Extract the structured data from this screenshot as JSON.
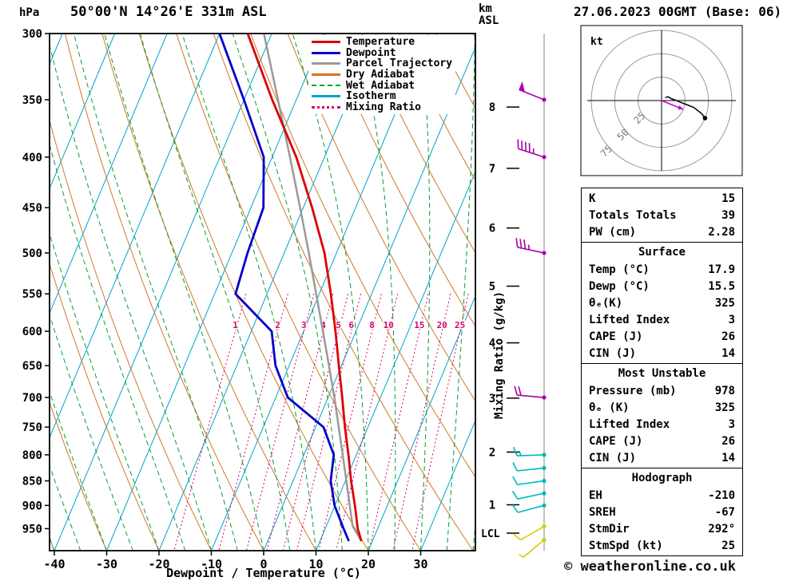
{
  "header": {
    "left_unit": "hPa",
    "station": "50°00'N 14°26'E 331m ASL",
    "datetime": "27.06.2023 00GMT (Base: 06)",
    "alt_unit_line1": "km",
    "alt_unit_line2": "ASL"
  },
  "axes": {
    "pressure_ticks": [
      300,
      350,
      400,
      450,
      500,
      550,
      600,
      650,
      700,
      750,
      800,
      850,
      900,
      950
    ],
    "temp_ticks": [
      -40,
      -30,
      -20,
      -10,
      0,
      10,
      20,
      30
    ],
    "x_label": "Dewpoint / Temperature (°C)",
    "km_ticks": [
      8,
      7,
      6,
      5,
      4,
      3,
      2,
      1
    ],
    "lcl_label": "LCL",
    "mixing_ratio_axis_label": "Mixing Ratio (g/kg)"
  },
  "legend": {
    "items": [
      {
        "label": "Temperature",
        "color": "#dd0000",
        "dash": "solid"
      },
      {
        "label": "Dewpoint",
        "color": "#0000cc",
        "dash": "solid"
      },
      {
        "label": "Parcel Trajectory",
        "color": "#9a9a9a",
        "dash": "solid"
      },
      {
        "label": "Dry Adiabat",
        "color": "#d07828",
        "dash": "solid"
      },
      {
        "label": "Wet Adiabat",
        "color": "#00a030",
        "dash": "dashed"
      },
      {
        "label": "Isotherm",
        "color": "#00a3cc",
        "dash": "solid"
      },
      {
        "label": "Mixing Ratio",
        "color": "#d6006e",
        "dash": "dotted"
      }
    ]
  },
  "chart_data": {
    "type": "skewt-log-p",
    "pressure_axis_hpa": [
      300,
      1000
    ],
    "surface_temp_axis_c": [
      -40,
      40
    ],
    "isotherm_step_c": 10,
    "dry_adiabat_step_c": 10,
    "wet_adiabat_step_c": 5,
    "mixing_ratio_lines_gkg": [
      1,
      2,
      3,
      4,
      5,
      6,
      8,
      10,
      15,
      20,
      25
    ],
    "colors": {
      "temperature": "#dd0000",
      "dewpoint": "#0000cc",
      "parcel": "#9a9a9a",
      "dry_adiabat": "#d07828",
      "wet_adiabat": "#00a030",
      "isotherm": "#00a3cc",
      "mixing_ratio": "#d6006e"
    },
    "sounding": {
      "pressure_hpa": [
        978,
        950,
        900,
        850,
        800,
        750,
        700,
        650,
        600,
        550,
        500,
        450,
        400,
        350,
        300
      ],
      "temperature_c": [
        17.9,
        16.2,
        13.8,
        11.1,
        8.5,
        5.6,
        2.7,
        -0.5,
        -3.9,
        -7.8,
        -12.3,
        -18.3,
        -25.4,
        -34.6,
        -44.6
      ],
      "dewpoint_c": [
        15.5,
        13.5,
        9.9,
        7.2,
        5.7,
        1.5,
        -7.7,
        -12.6,
        -16.1,
        -26.0,
        -27.0,
        -27.6,
        -31.6,
        -40.0,
        -50.0
      ]
    },
    "parcel": {
      "pressure_hpa": [
        978,
        944,
        900,
        850,
        800,
        750,
        700,
        650,
        600,
        550,
        500,
        450,
        400,
        350,
        300
      ],
      "temperature_c": [
        17.9,
        15.0,
        12.8,
        10.2,
        7.4,
        4.4,
        1.2,
        -2.4,
        -6.3,
        -10.6,
        -15.3,
        -20.6,
        -26.6,
        -33.5,
        -41.5
      ]
    },
    "lcl_pressure_hpa": 960,
    "winds": [
      {
        "p": 350,
        "dir": 292,
        "spd": 50,
        "color": "#a800a8"
      },
      {
        "p": 400,
        "dir": 288,
        "spd": 45,
        "color": "#a800a8"
      },
      {
        "p": 500,
        "dir": 282,
        "spd": 35,
        "color": "#a800a8"
      },
      {
        "p": 700,
        "dir": 275,
        "spd": 20,
        "color": "#a800a8"
      },
      {
        "p": 800,
        "dir": 268,
        "spd": 15,
        "color": "#00b8b8"
      },
      {
        "p": 825,
        "dir": 264,
        "spd": 12,
        "color": "#00b8b8"
      },
      {
        "p": 850,
        "dir": 262,
        "spd": 12,
        "color": "#00b8b8"
      },
      {
        "p": 875,
        "dir": 258,
        "spd": 10,
        "color": "#00b8b8"
      },
      {
        "p": 900,
        "dir": 255,
        "spd": 10,
        "color": "#00b8b8"
      },
      {
        "p": 945,
        "dir": 240,
        "spd": 8,
        "color": "#d8cc00"
      },
      {
        "p": 975,
        "dir": 230,
        "spd": 5,
        "color": "#d8cc00"
      }
    ]
  },
  "hodograph": {
    "unit": "kt",
    "rings": [
      25,
      50,
      75
    ],
    "storm_dir_deg": 292,
    "storm_speed_kt": 25
  },
  "table": {
    "sections": [
      {
        "header": null,
        "rows": [
          [
            "K",
            "15"
          ],
          [
            "Totals Totals",
            "39"
          ],
          [
            "PW (cm)",
            "2.28"
          ]
        ]
      },
      {
        "header": "Surface",
        "rows": [
          [
            "Temp (°C)",
            "17.9"
          ],
          [
            "Dewp (°C)",
            "15.5"
          ],
          [
            "θₑ(K)",
            "325"
          ],
          [
            "Lifted Index",
            "3"
          ],
          [
            "CAPE (J)",
            "26"
          ],
          [
            "CIN (J)",
            "14"
          ]
        ]
      },
      {
        "header": "Most Unstable",
        "rows": [
          [
            "Pressure (mb)",
            "978"
          ],
          [
            "θₑ (K)",
            "325"
          ],
          [
            "Lifted Index",
            "3"
          ],
          [
            "CAPE (J)",
            "26"
          ],
          [
            "CIN (J)",
            "14"
          ]
        ]
      },
      {
        "header": "Hodograph",
        "rows": [
          [
            "EH",
            "-210"
          ],
          [
            "SREH",
            "-67"
          ],
          [
            "StmDir",
            "292°"
          ],
          [
            "StmSpd (kt)",
            "25"
          ]
        ]
      }
    ]
  },
  "footer": {
    "credit": "© weatheronline.co.uk"
  }
}
